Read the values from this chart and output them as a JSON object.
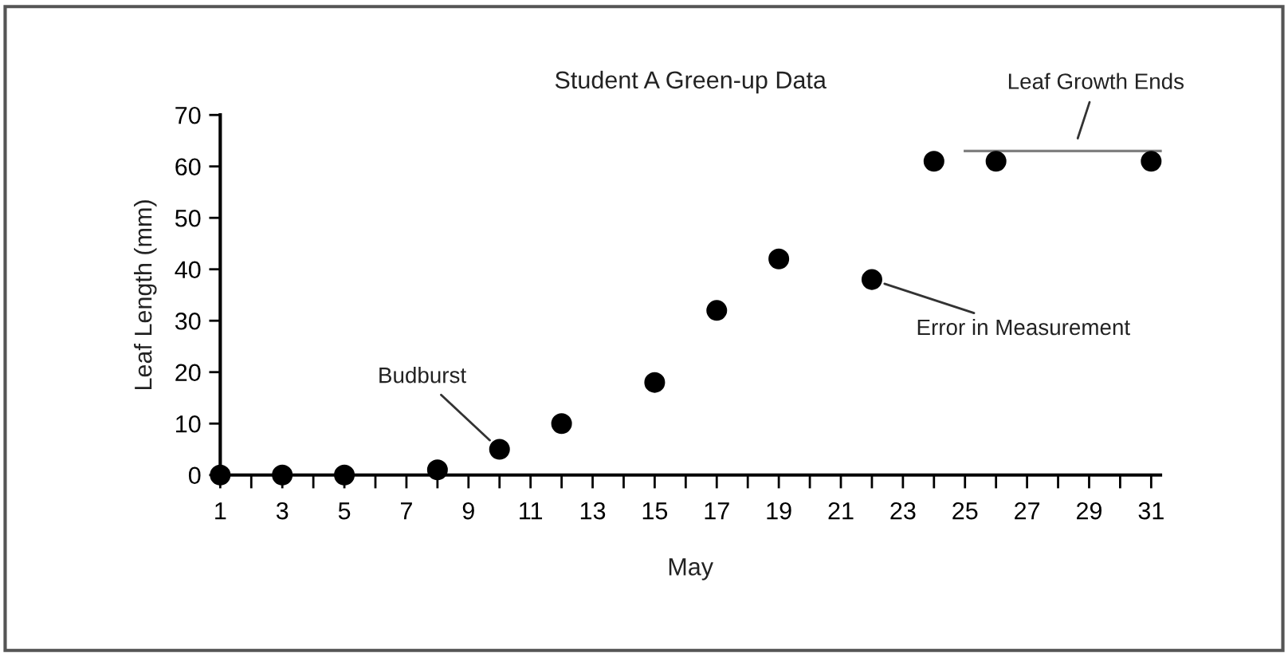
{
  "chart_data": {
    "type": "scatter",
    "title": "Student A Green-up Data",
    "xlabel": "May",
    "ylabel": "Leaf Length (mm)",
    "x": [
      1,
      3,
      5,
      8,
      10,
      12,
      15,
      17,
      19,
      22,
      24,
      26,
      31
    ],
    "series": [
      {
        "color": "#000000",
        "values": [
          0,
          0,
          0,
          1,
          5,
          10,
          18,
          32,
          42,
          38,
          61,
          61,
          61
        ]
      },
      {
        "type": "line",
        "color": "#808080",
        "marker": "none",
        "x": [
          25,
          31.3
        ],
        "values": [
          63,
          63
        ]
      }
    ],
    "annotations": [
      {
        "text": "Budburst",
        "x": 10,
        "y": 5
      },
      {
        "text": "Error in Measurement",
        "x": 22,
        "y": 38
      },
      {
        "text": "Leaf Growth Ends",
        "x": 28.5,
        "y": 63
      }
    ],
    "xlim": [
      1,
      31.3
    ],
    "ylim": [
      0,
      70
    ],
    "xticks": [
      1,
      {
        "value": 2,
        "label": null
      },
      3,
      {
        "value": 4,
        "label": null
      },
      5,
      {
        "value": 6,
        "label": null
      },
      7,
      {
        "value": 8,
        "label": null
      },
      9,
      {
        "value": 10,
        "label": null
      },
      11,
      {
        "value": 12,
        "label": null
      },
      13,
      {
        "value": 14,
        "label": null
      },
      15,
      {
        "value": 16,
        "label": null
      },
      17,
      {
        "value": 18,
        "label": null
      },
      19,
      {
        "value": 20,
        "label": null
      },
      21,
      {
        "value": 22,
        "label": null
      },
      23,
      {
        "value": 24,
        "label": null
      },
      25,
      {
        "value": 26,
        "label": null
      },
      27,
      {
        "value": 28,
        "label": null
      },
      29,
      {
        "value": 30,
        "label": null
      },
      31
    ],
    "yticks": [
      0,
      10,
      20,
      30,
      40,
      50,
      60,
      70
    ],
    "marker": "circle",
    "grid": false,
    "legend": false
  }
}
